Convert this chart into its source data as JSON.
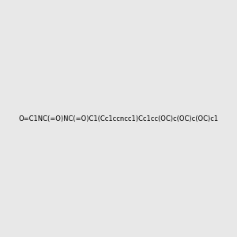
{
  "smiles": "O=C1NC(=O)NC(=O)C1(Cc1ccncc1)Cc1cc(OC)c(OC)c(OC)c1",
  "image_size": 300,
  "background_color": "#e8e8e8",
  "bond_color": "#000000",
  "atom_colors": {
    "N": "#0000ff",
    "O": "#ff0000",
    "H_on_N": "#008080"
  },
  "title": "",
  "dpi": 100
}
